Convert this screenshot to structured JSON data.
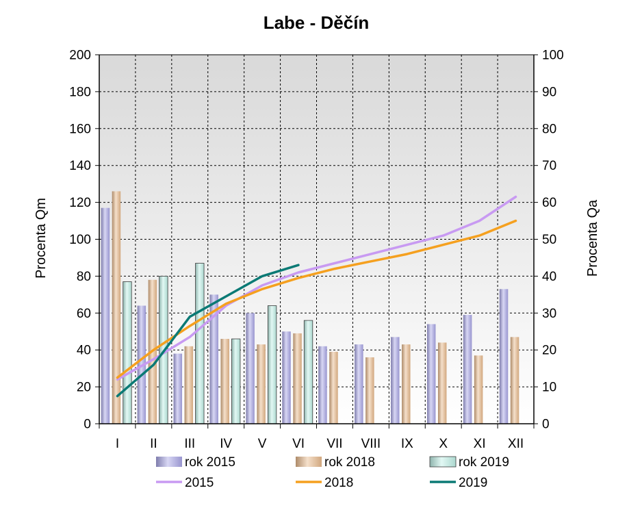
{
  "chart_data": {
    "type": "bar",
    "title": "Labe - Děčín",
    "ylabel": "Procenta Qm",
    "y2label": "Procenta Qa",
    "ylim": [
      0,
      200
    ],
    "y2lim": [
      0,
      100
    ],
    "yticks": [
      "0",
      "20",
      "40",
      "60",
      "80",
      "100",
      "120",
      "140",
      "160",
      "180",
      "200"
    ],
    "y2ticks": [
      "0",
      "10",
      "20",
      "30",
      "40",
      "50",
      "60",
      "70",
      "80",
      "90",
      "100"
    ],
    "categories": [
      "I",
      "II",
      "III",
      "IV",
      "V",
      "VI",
      "VII",
      "VIII",
      "IX",
      "X",
      "XI",
      "XII"
    ],
    "grid": true,
    "legend_position": "bottom",
    "bar_series": [
      {
        "name": "rok 2015",
        "color": "#a9a6e6",
        "values": [
          117,
          64,
          38,
          70,
          60,
          50,
          42,
          43,
          47,
          54,
          59,
          73
        ]
      },
      {
        "name": "rok 2018",
        "color": "#e8b98c",
        "values": [
          126,
          78,
          42,
          46,
          43,
          49,
          39,
          36,
          43,
          44,
          37,
          47
        ]
      },
      {
        "name": "rok 2019",
        "color": "#bff0e6",
        "values": [
          77,
          80,
          87,
          46,
          64,
          56,
          null,
          null,
          null,
          null,
          null,
          null
        ]
      }
    ],
    "line_series": [
      {
        "name": "2015",
        "color": "#c89af2",
        "axis": "right",
        "values": [
          12,
          17.5,
          23.5,
          32,
          37.5,
          41,
          43.5,
          46,
          48.5,
          51,
          55,
          61.5
        ]
      },
      {
        "name": "2018",
        "color": "#f5a01f",
        "axis": "right",
        "values": [
          12.5,
          20,
          26.5,
          32.5,
          36.5,
          39.5,
          42,
          44,
          46,
          48.5,
          51,
          55
        ]
      },
      {
        "name": "2019",
        "color": "#0b7a75",
        "axis": "right",
        "values": [
          7.5,
          16,
          29,
          34.5,
          40,
          43,
          null,
          null,
          null,
          null,
          null,
          null
        ]
      }
    ]
  }
}
